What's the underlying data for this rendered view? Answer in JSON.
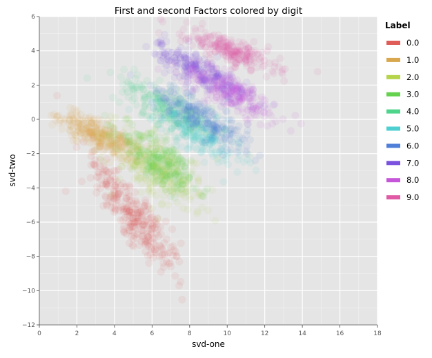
{
  "chart_data": {
    "type": "scatter",
    "title": "First and second Factors colored by digit",
    "xlabel": "svd-one",
    "ylabel": "svd-two",
    "xlim": [
      0,
      18
    ],
    "ylim": [
      -12,
      6
    ],
    "x_ticks": [
      0,
      2,
      4,
      6,
      8,
      10,
      12,
      14,
      16,
      18
    ],
    "y_ticks": [
      -12,
      -10,
      -8,
      -6,
      -4,
      -2,
      0,
      2,
      4,
      6
    ],
    "x_tick_labels": [
      "0",
      "2",
      "4",
      "6",
      "8",
      "10",
      "12",
      "14",
      "16",
      "18"
    ],
    "y_tick_labels": [
      "−12",
      "−10",
      "−8",
      "−6",
      "−4",
      "−2",
      "0",
      "2",
      "4",
      "6"
    ],
    "grid": true,
    "background": "#e5e5e5",
    "legend": {
      "title": "Label",
      "position": "right",
      "entries": [
        "0.0",
        "1.0",
        "2.0",
        "3.0",
        "4.0",
        "5.0",
        "6.0",
        "7.0",
        "8.0",
        "9.0"
      ]
    },
    "series": [
      {
        "name": "0.0",
        "color": "#e05c58",
        "center": [
          5.0,
          -5.6
        ],
        "spread_along": 2.0,
        "spread_across": 0.55,
        "angle_deg": -58,
        "n": 300
      },
      {
        "name": "1.0",
        "color": "#d9a84e",
        "center": [
          3.3,
          -1.0
        ],
        "spread_along": 1.25,
        "spread_across": 0.38,
        "angle_deg": -30,
        "n": 300
      },
      {
        "name": "2.0",
        "color": "#b5d44a",
        "center": [
          6.2,
          -2.9
        ],
        "spread_along": 1.5,
        "spread_across": 0.7,
        "angle_deg": -42,
        "n": 260
      },
      {
        "name": "3.0",
        "color": "#64d14f",
        "center": [
          6.5,
          -2.5
        ],
        "spread_along": 1.3,
        "spread_across": 0.6,
        "angle_deg": -40,
        "n": 240
      },
      {
        "name": "4.0",
        "color": "#4fd48b",
        "center": [
          7.1,
          0.5
        ],
        "spread_along": 1.5,
        "spread_across": 0.5,
        "angle_deg": -35,
        "n": 240
      },
      {
        "name": "5.0",
        "color": "#4fcfd0",
        "center": [
          8.5,
          -0.8
        ],
        "spread_along": 1.3,
        "spread_across": 0.55,
        "angle_deg": -35,
        "n": 200
      },
      {
        "name": "6.0",
        "color": "#4f7fd8",
        "center": [
          8.6,
          0.1
        ],
        "spread_along": 1.5,
        "spread_across": 0.45,
        "angle_deg": -35,
        "n": 220
      },
      {
        "name": "7.0",
        "color": "#7a52df",
        "center": [
          8.7,
          2.7
        ],
        "spread_along": 1.45,
        "spread_across": 0.42,
        "angle_deg": -33,
        "n": 260
      },
      {
        "name": "8.0",
        "color": "#c655d9",
        "center": [
          10.2,
          1.6
        ],
        "spread_along": 1.5,
        "spread_across": 0.45,
        "angle_deg": -30,
        "n": 230
      },
      {
        "name": "9.0",
        "color": "#e05aa5",
        "center": [
          10.2,
          4.0
        ],
        "spread_along": 1.3,
        "spread_across": 0.35,
        "angle_deg": -24,
        "n": 230
      }
    ]
  }
}
